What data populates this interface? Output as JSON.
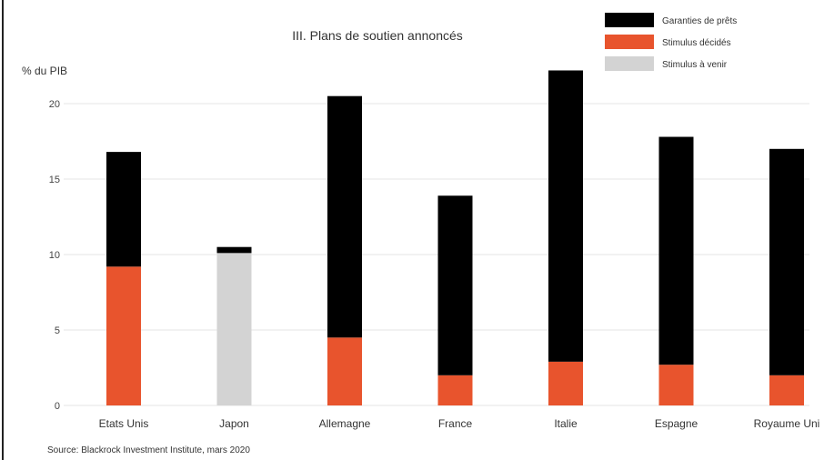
{
  "chart_data": {
    "type": "bar",
    "stacked": true,
    "title": "III. Plans de soutien annoncés",
    "ylabel": "% du PIB",
    "xlabel": "",
    "ylim": [
      0,
      22.5
    ],
    "yticks": [
      "0",
      "5",
      "10",
      "15",
      "20"
    ],
    "grid": true,
    "legend_position": "top-right",
    "categories": [
      "Etats Unis",
      "Japon",
      "Allemagne",
      "France",
      "Italie",
      "Espagne",
      "Royaume Uni"
    ],
    "series": [
      {
        "name": "Stimulus décidés",
        "color": "#e8542d",
        "values": [
          9.2,
          0,
          4.5,
          2.0,
          2.9,
          2.7,
          2.0
        ]
      },
      {
        "name": "Stimulus à venir",
        "color": "#d3d3d3",
        "values": [
          0,
          10.1,
          0,
          0,
          0,
          0,
          0
        ]
      },
      {
        "name": "Garanties de prêts",
        "color": "#000000",
        "values": [
          7.6,
          0.4,
          16.0,
          11.9,
          19.3,
          15.1,
          15.0
        ]
      }
    ],
    "legend_order": [
      "Garanties de prêts",
      "Stimulus décidés",
      "Stimulus à venir"
    ],
    "source": "Source: Blackrock Investment Institute, mars 2020"
  }
}
